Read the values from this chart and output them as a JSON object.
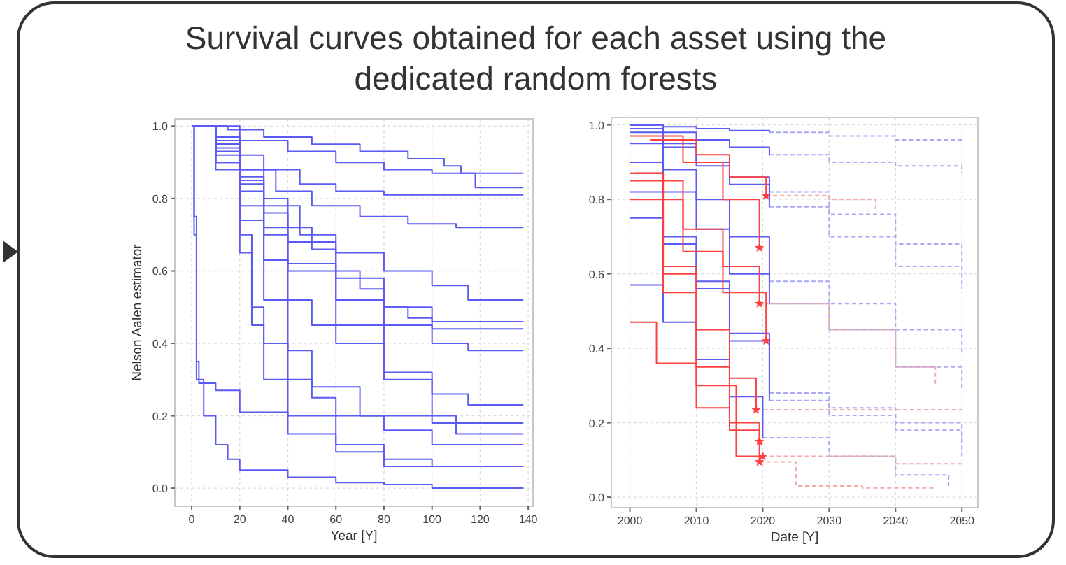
{
  "chart_data": [
    {
      "type": "step",
      "title": "Survival curves obtained for each asset using the dedicated random forests",
      "xlabel": "Year [Y]",
      "ylabel": "Nelson Aalen estimator",
      "xlim": [
        -7,
        142
      ],
      "ylim": [
        -0.05,
        1.02
      ],
      "xticks": [
        0,
        20,
        40,
        60,
        80,
        100,
        120,
        140
      ],
      "yticks": [
        {
          "value": 0,
          "label": "0.0"
        },
        {
          "value": 0.2,
          "label": "0.2"
        },
        {
          "value": 0.4,
          "label": "0.4"
        },
        {
          "value": 0.6,
          "label": "0.6"
        },
        {
          "value": 0.8,
          "label": "0.8"
        },
        {
          "value": 1,
          "label": "1.0"
        }
      ],
      "grid": true,
      "line_style": "solid",
      "marker": "none",
      "series": [
        {
          "color": "#5a5af5",
          "x": [
            0,
            15,
            30,
            50,
            70,
            90,
            105,
            112,
            138
          ],
          "values": [
            1,
            0.99,
            0.97,
            0.95,
            0.93,
            0.91,
            0.89,
            0.87,
            0.87
          ]
        },
        {
          "color": "#5a5af5",
          "x": [
            0,
            20,
            40,
            60,
            80,
            100,
            118,
            138
          ],
          "values": [
            1,
            0.96,
            0.93,
            0.9,
            0.88,
            0.87,
            0.83,
            0.83
          ]
        },
        {
          "color": "#5a5af5",
          "x": [
            0,
            10,
            20,
            30,
            45,
            60,
            80,
            100,
            138
          ],
          "values": [
            1,
            0.97,
            0.92,
            0.88,
            0.84,
            0.82,
            0.81,
            0.81,
            0.81
          ]
        },
        {
          "color": "#5a5af5",
          "x": [
            0,
            10,
            20,
            35,
            50,
            70,
            90,
            110,
            138
          ],
          "values": [
            1,
            0.95,
            0.88,
            0.82,
            0.78,
            0.75,
            0.73,
            0.72,
            0.72
          ]
        },
        {
          "color": "#5a5af5",
          "x": [
            0,
            10,
            20,
            30,
            45,
            60,
            80,
            100,
            115,
            138
          ],
          "values": [
            1,
            0.95,
            0.86,
            0.78,
            0.7,
            0.65,
            0.6,
            0.56,
            0.52,
            0.52
          ]
        },
        {
          "color": "#5a5af5",
          "x": [
            0,
            10,
            20,
            30,
            40,
            60,
            80,
            100,
            138
          ],
          "values": [
            1,
            0.95,
            0.85,
            0.76,
            0.68,
            0.58,
            0.5,
            0.46,
            0.46
          ]
        },
        {
          "color": "#5a5af5",
          "x": [
            0,
            10,
            20,
            30,
            40,
            50,
            60,
            70,
            80,
            90,
            100,
            138
          ],
          "values": [
            1,
            0.96,
            0.88,
            0.8,
            0.72,
            0.66,
            0.6,
            0.55,
            0.5,
            0.47,
            0.44,
            0.44
          ]
        },
        {
          "color": "#5a5af5",
          "x": [
            0,
            10,
            20,
            30,
            40,
            60,
            80,
            100,
            115,
            138
          ],
          "values": [
            1,
            0.93,
            0.82,
            0.7,
            0.62,
            0.52,
            0.45,
            0.4,
            0.38,
            0.38
          ]
        },
        {
          "color": "#5a5af5",
          "x": [
            0,
            10,
            20,
            30,
            40,
            50,
            60,
            80,
            100,
            115,
            138
          ],
          "values": [
            1,
            0.92,
            0.78,
            0.63,
            0.52,
            0.45,
            0.4,
            0.32,
            0.26,
            0.23,
            0.23
          ]
        },
        {
          "color": "#5a5af5",
          "x": [
            0,
            10,
            20,
            30,
            40,
            50,
            70,
            100,
            138
          ],
          "values": [
            1,
            0.9,
            0.74,
            0.52,
            0.38,
            0.28,
            0.2,
            0.18,
            0.18
          ]
        },
        {
          "color": "#5a5af5",
          "x": [
            0,
            10,
            20,
            30,
            40,
            60,
            80,
            100,
            110,
            138
          ],
          "values": [
            1,
            0.94,
            0.84,
            0.72,
            0.6,
            0.45,
            0.3,
            0.2,
            0.15,
            0.15
          ]
        },
        {
          "color": "#5a5af5",
          "x": [
            0,
            10,
            20,
            25,
            30,
            40,
            50,
            60,
            80,
            100,
            138
          ],
          "values": [
            1,
            0.9,
            0.7,
            0.5,
            0.4,
            0.3,
            0.25,
            0.2,
            0.16,
            0.12,
            0.12
          ]
        },
        {
          "color": "#5a5af5",
          "x": [
            0,
            10,
            20,
            25,
            30,
            40,
            60,
            80,
            100,
            138
          ],
          "values": [
            1,
            0.88,
            0.65,
            0.45,
            0.3,
            0.2,
            0.12,
            0.08,
            0.06,
            0.06
          ]
        },
        {
          "color": "#5a5af5",
          "x": [
            0,
            1,
            2,
            3,
            10,
            20,
            40,
            60,
            80,
            138
          ],
          "values": [
            1,
            0.75,
            0.35,
            0.29,
            0.27,
            0.21,
            0.15,
            0.1,
            0.06,
            0.06
          ]
        },
        {
          "color": "#5a5af5",
          "x": [
            0,
            1,
            2,
            5,
            10,
            15,
            20,
            40,
            60,
            80,
            100,
            138
          ],
          "values": [
            1,
            0.7,
            0.3,
            0.2,
            0.12,
            0.08,
            0.05,
            0.03,
            0.015,
            0.01,
            0,
            0
          ]
        }
      ]
    },
    {
      "type": "step",
      "xlabel": "Date [Y]",
      "xlim": [
        1997.2,
        2052.4
      ],
      "ylim": [
        -0.028,
        1.02
      ],
      "xticks": [
        2000,
        2010,
        2020,
        2030,
        2040,
        2050
      ],
      "yticks": [
        {
          "value": 0,
          "label": "0.0"
        },
        {
          "value": 0.2,
          "label": "0.2"
        },
        {
          "value": 0.4,
          "label": "0.4"
        },
        {
          "value": 0.6,
          "label": "0.6"
        },
        {
          "value": 0.8,
          "label": "0.8"
        },
        {
          "value": 1,
          "label": "1.0"
        }
      ],
      "grid": true,
      "line_style": "solid",
      "marker": "none",
      "series": [
        {
          "color": "#a8a8f5",
          "line_style": "dashed",
          "x": [
            2021,
            2030,
            2040,
            2050
          ],
          "values": [
            0.98,
            0.97,
            0.96,
            0.95
          ]
        },
        {
          "color": "#a8a8f5",
          "line_style": "dashed",
          "x": [
            2021,
            2030,
            2040,
            2050
          ],
          "values": [
            0.92,
            0.9,
            0.89,
            0.87
          ]
        },
        {
          "color": "#a8a8f5",
          "line_style": "dashed",
          "x": [
            2021,
            2030,
            2040,
            2050
          ],
          "values": [
            0.82,
            0.76,
            0.68,
            0.63
          ]
        },
        {
          "color": "#a8a8f5",
          "line_style": "dashed",
          "x": [
            2021,
            2030,
            2040,
            2050
          ],
          "values": [
            0.78,
            0.7,
            0.62,
            0.56
          ]
        },
        {
          "color": "#a8a8f5",
          "line_style": "dashed",
          "x": [
            2021,
            2030,
            2040,
            2050
          ],
          "values": [
            0.58,
            0.52,
            0.45,
            0.39
          ]
        },
        {
          "color": "#a8a8f5",
          "line_style": "dashed",
          "x": [
            2021,
            2030,
            2040,
            2050
          ],
          "values": [
            0.52,
            0.45,
            0.35,
            0.29
          ]
        },
        {
          "color": "#a8a8f5",
          "line_style": "dashed",
          "x": [
            2021,
            2030,
            2040,
            2050
          ],
          "values": [
            0.28,
            0.24,
            0.2,
            0.14
          ]
        },
        {
          "color": "#a8a8f5",
          "line_style": "dashed",
          "x": [
            2021,
            2030,
            2040,
            2050
          ],
          "values": [
            0.26,
            0.22,
            0.18,
            0.11
          ]
        },
        {
          "color": "#a8a8f5",
          "line_style": "dashed",
          "x": [
            2020,
            2030,
            2040,
            2048
          ],
          "values": [
            0.16,
            0.11,
            0.06,
            0.03
          ]
        },
        {
          "color": "#f5a8a8",
          "line_style": "dashed",
          "x": [
            2020.5,
            2030,
            2037
          ],
          "values": [
            0.81,
            0.8,
            0.77
          ]
        },
        {
          "color": "#f5a8a8",
          "line_style": "dashed",
          "x": [
            2019.5,
            2030,
            2040,
            2046
          ],
          "values": [
            0.52,
            0.45,
            0.35,
            0.3
          ]
        },
        {
          "color": "#f5a8a8",
          "line_style": "dashed",
          "x": [
            2019,
            2030,
            2040,
            2050
          ],
          "values": [
            0.235,
            0.235,
            0.235,
            0.235
          ]
        },
        {
          "color": "#f5a8a8",
          "line_style": "dashed",
          "x": [
            2020,
            2030,
            2040,
            2050
          ],
          "values": [
            0.11,
            0.11,
            0.09,
            0.09
          ]
        },
        {
          "color": "#f5a8a8",
          "line_style": "dashed",
          "x": [
            2019.5,
            2025,
            2035,
            2046
          ],
          "values": [
            0.095,
            0.03,
            0.025,
            0.025
          ]
        },
        {
          "color": "#5a5af5",
          "x": [
            2000,
            2005,
            2010,
            2015,
            2021
          ],
          "values": [
            1,
            0.995,
            0.99,
            0.985,
            0.98
          ]
        },
        {
          "color": "#5a5af5",
          "x": [
            2000,
            2005,
            2010,
            2015,
            2021
          ],
          "values": [
            1,
            0.98,
            0.96,
            0.94,
            0.92
          ]
        },
        {
          "color": "#5a5af5",
          "x": [
            2000,
            2005,
            2010,
            2015,
            2021
          ],
          "values": [
            0.99,
            0.95,
            0.9,
            0.86,
            0.82
          ]
        },
        {
          "color": "#5a5af5",
          "x": [
            2000,
            2005,
            2010,
            2015,
            2021
          ],
          "values": [
            0.98,
            0.94,
            0.89,
            0.84,
            0.78
          ]
        },
        {
          "color": "#5a5af5",
          "x": [
            2000,
            2005,
            2010,
            2015,
            2021
          ],
          "values": [
            0.95,
            0.88,
            0.8,
            0.7,
            0.58
          ]
        },
        {
          "color": "#5a5af5",
          "x": [
            2000,
            2005,
            2010,
            2015,
            2021
          ],
          "values": [
            0.9,
            0.82,
            0.72,
            0.6,
            0.52
          ]
        },
        {
          "color": "#5a5af5",
          "x": [
            2000,
            2005,
            2010,
            2015,
            2021
          ],
          "values": [
            0.82,
            0.7,
            0.58,
            0.44,
            0.28
          ]
        },
        {
          "color": "#5a5af5",
          "x": [
            2000,
            2005,
            2010,
            2015,
            2021
          ],
          "values": [
            0.75,
            0.68,
            0.56,
            0.42,
            0.26
          ]
        },
        {
          "color": "#5a5af5",
          "x": [
            2000,
            2005,
            2010,
            2015,
            2020
          ],
          "values": [
            0.57,
            0.47,
            0.37,
            0.27,
            0.16
          ]
        },
        {
          "color": "#ff4040",
          "x": [
            2003,
            2010,
            2015,
            2020.5
          ],
          "values": [
            0.96,
            0.92,
            0.86,
            0.81
          ]
        },
        {
          "color": "#ff4040",
          "x": [
            2000,
            2008,
            2014,
            2019.5
          ],
          "values": [
            0.97,
            0.9,
            0.8,
            0.67
          ]
        },
        {
          "color": "#ff4040",
          "x": [
            2000,
            2008,
            2014,
            2019.5
          ],
          "values": [
            0.85,
            0.72,
            0.62,
            0.52
          ]
        },
        {
          "color": "#ff4040",
          "x": [
            2000,
            2008,
            2014,
            2020.5
          ],
          "values": [
            0.8,
            0.66,
            0.55,
            0.42
          ]
        },
        {
          "color": "#ff4040",
          "x": [
            2000,
            2005,
            2010,
            2015,
            2019
          ],
          "values": [
            0.87,
            0.6,
            0.45,
            0.32,
            0.235
          ]
        },
        {
          "color": "#ff4040",
          "x": [
            2000,
            2004,
            2010,
            2015,
            2019.5
          ],
          "values": [
            0.47,
            0.36,
            0.24,
            0.18,
            0.15
          ]
        },
        {
          "color": "#ff4040",
          "x": [
            2001,
            2005,
            2010,
            2016,
            2020
          ],
          "values": [
            0.87,
            0.55,
            0.3,
            0.11,
            0.11
          ]
        },
        {
          "color": "#ff4040",
          "x": [
            2000,
            2005,
            2010,
            2015,
            2019.5
          ],
          "values": [
            0.87,
            0.62,
            0.35,
            0.2,
            0.095
          ]
        },
        {
          "type": "scatter",
          "marker": "star",
          "color": "#ff4040",
          "x": [
            2020.5,
            2019.5,
            2019.5,
            2020.5,
            2019,
            2019.5,
            2020,
            2019.5
          ],
          "values": [
            0.81,
            0.67,
            0.52,
            0.42,
            0.235,
            0.15,
            0.11,
            0.095
          ]
        }
      ]
    }
  ]
}
